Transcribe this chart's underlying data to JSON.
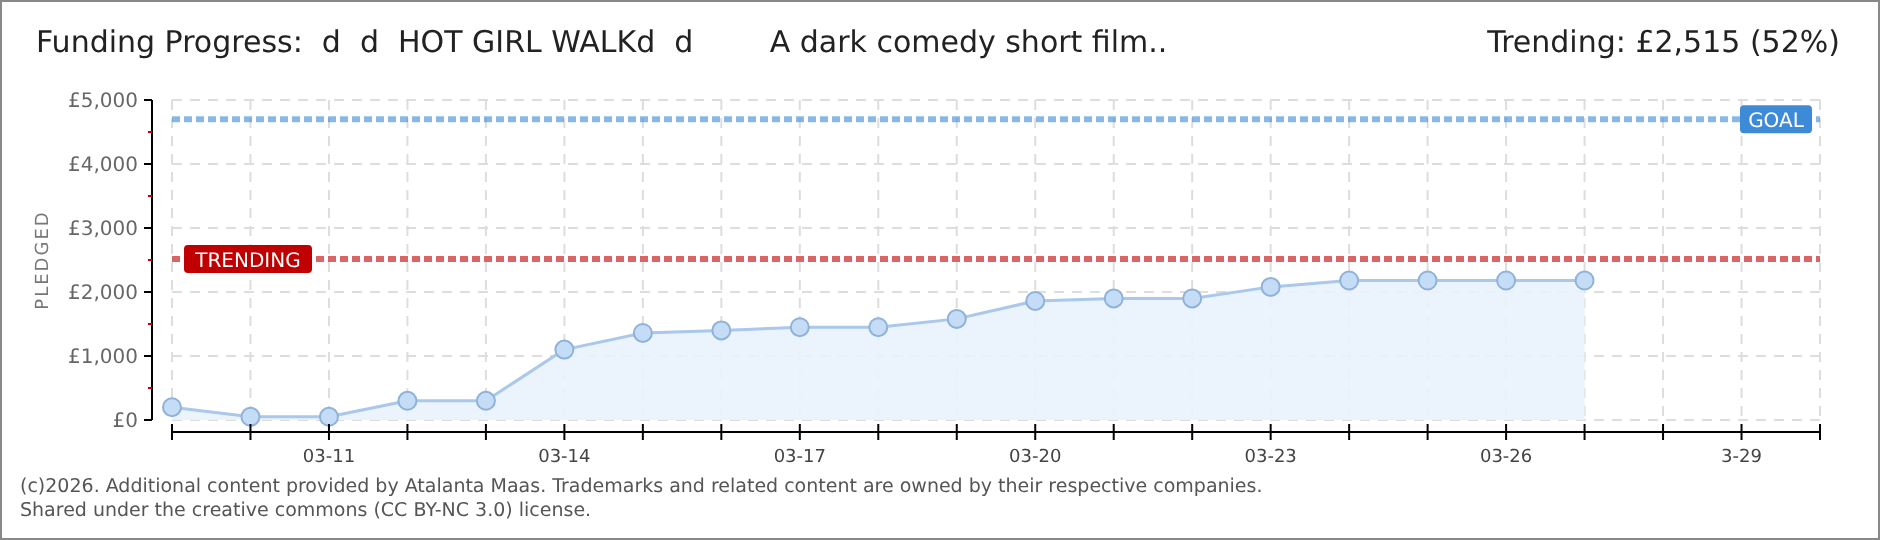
{
  "chart_data": {
    "type": "area",
    "title": "Funding Progress:  d  d  HOT GIRL WALKd  d        A dark comedy short film..",
    "subtitle": "Trending:  £2,515 (52%)",
    "ylabel": "PLEDGED",
    "x": [
      "--03-09",
      "--03-10",
      "--03-11",
      "--03-12",
      "--03-13",
      "--03-14",
      "--03-15",
      "--03-16",
      "--03-17",
      "--03-18",
      "--03-19",
      "--03-20",
      "--03-21",
      "--03-22",
      "--03-23",
      "--03-24",
      "--03-25",
      "--03-26",
      "--03-27"
    ],
    "series": [
      {
        "color": "#a9c8ec",
        "values": [
          200,
          50,
          50,
          300,
          300,
          1100,
          1360,
          1400,
          1450,
          1450,
          1580,
          1860,
          1900,
          1900,
          2080,
          2180,
          2180,
          2180,
          2180
        ]
      }
    ],
    "xlim": [
      "--03-09",
      "--03-30"
    ],
    "xticks": [
      {
        "value": "--03-09",
        "label": null
      },
      {
        "value": "--03-10",
        "label": null
      },
      {
        "value": "--03-11",
        "label": "03-11"
      },
      {
        "value": "--03-12",
        "label": null
      },
      {
        "value": "--03-13",
        "label": null
      },
      {
        "value": "--03-14",
        "label": "03-14"
      },
      {
        "value": "--03-15",
        "label": null
      },
      {
        "value": "--03-16",
        "label": null
      },
      {
        "value": "--03-17",
        "label": "03-17"
      },
      {
        "value": "--03-18",
        "label": null
      },
      {
        "value": "--03-19",
        "label": null
      },
      {
        "value": "--03-20",
        "label": "03-20"
      },
      {
        "value": "--03-21",
        "label": null
      },
      {
        "value": "--03-22",
        "label": null
      },
      {
        "value": "--03-23",
        "label": "03-23"
      },
      {
        "value": "--03-24",
        "label": null
      },
      {
        "value": "--03-25",
        "label": null
      },
      {
        "value": "--03-26",
        "label": "03-26"
      },
      {
        "value": "--03-27",
        "label": null
      },
      {
        "value": "--03-28",
        "label": null
      },
      {
        "value": "--03-29",
        "label": "3-29"
      },
      {
        "value": "--03-30",
        "label": null
      }
    ],
    "ylim": [
      0,
      5000
    ],
    "yticks": [
      {
        "value": 0,
        "label": "£0"
      },
      {
        "value": 500,
        "label": null
      },
      {
        "value": 1000,
        "label": "£1,000"
      },
      {
        "value": 1500,
        "label": null
      },
      {
        "value": 2000,
        "label": "£2,000"
      },
      {
        "value": 2500,
        "label": null
      },
      {
        "value": 3000,
        "label": "£3,000"
      },
      {
        "value": 3500,
        "label": null
      },
      {
        "value": 4000,
        "label": "£4,000"
      },
      {
        "value": 4500,
        "label": null
      },
      {
        "value": 5000,
        "label": "£5,000"
      }
    ],
    "grid": true,
    "marker": "circle",
    "ref_lines": [
      {
        "axis": "y",
        "value": 4700,
        "label": "GOAL",
        "color": "#3d8ad6"
      },
      {
        "axis": "y",
        "value": 2515,
        "label": "TRENDING",
        "color": "#c00000"
      }
    ],
    "annotations": [
      "(c)2026. Additional content provided by Atalanta Maas. Trademarks and related content are owned by their respective companies.",
      "Shared under the creative commons (CC BY-NC 3.0) license."
    ]
  }
}
